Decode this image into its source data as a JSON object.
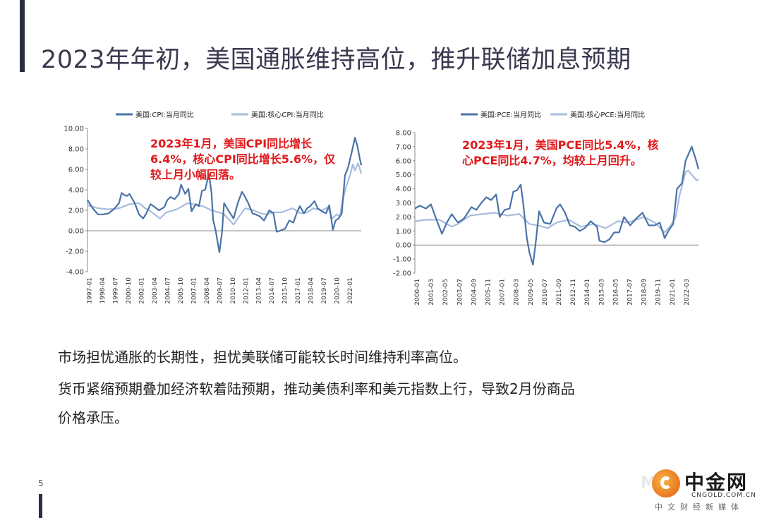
{
  "slide": {
    "title": "2023年年初，美国通胀维持高位，推升联储加息预期",
    "page_number": "5",
    "paragraphs": [
      "市场担忧通胀的长期性，担忧美联储可能较长时间维持利率高位。",
      "货币紧缩预期叠加经济软着陆预期，推动美债利率和美元指数上行，导致2月份商品",
      "价格承压。"
    ],
    "logo": {
      "mark": "M●",
      "name": "中金网",
      "domain": "CNGOLD.COM.CN",
      "tagline": "中文财经新媒体"
    }
  },
  "colors": {
    "primary": "#4a73a8",
    "secondary": "#a8bcdc",
    "annotation": "#e0191c",
    "accent_bar": "#2b2d42"
  },
  "chart_data": [
    {
      "type": "line",
      "annotation": "2023年1月，美国CPI同比增长6.4%，核心CPI同比增长5.6%，仅较上月小幅回落。",
      "x_tick_labels": [
        "1997-01",
        "1998-04",
        "1999-07",
        "2000-10",
        "2002-01",
        "2003-04",
        "2004-07",
        "2005-10",
        "2007-01",
        "2008-04",
        "2009-07",
        "2010-10",
        "2012-01",
        "2013-04",
        "2014-07",
        "2015-10",
        "2017-01",
        "2018-04",
        "2019-07",
        "2020-10",
        "2022-01"
      ],
      "y_tick_labels": [
        "10.00",
        "8.00",
        "6.00",
        "4.00",
        "2.00",
        "0.00",
        "-2.00",
        "-4.00"
      ],
      "ylim": [
        -4,
        10
      ],
      "x_range": [
        1997.0,
        2023.05
      ],
      "legend_position": "top",
      "grid": false,
      "series": [
        {
          "name": "美国:CPI:当月同比",
          "x": [
            1997.0,
            1997.5,
            1998.0,
            1998.5,
            1999.0,
            1999.5,
            2000.0,
            2000.25,
            2000.5,
            2000.75,
            2001.0,
            2001.5,
            2001.9,
            2002.3,
            2002.6,
            2003.0,
            2003.3,
            2003.8,
            2004.3,
            2004.6,
            2004.9,
            2005.3,
            2005.7,
            2005.9,
            2006.3,
            2006.6,
            2006.9,
            2007.3,
            2007.6,
            2007.9,
            2008.2,
            2008.55,
            2008.8,
            2008.95,
            2009.2,
            2009.55,
            2009.8,
            2010.0,
            2010.4,
            2010.9,
            2011.3,
            2011.7,
            2011.9,
            2012.3,
            2012.7,
            2013.0,
            2013.4,
            2013.8,
            2014.3,
            2014.7,
            2015.0,
            2015.3,
            2015.8,
            2016.2,
            2016.6,
            2016.9,
            2017.2,
            2017.6,
            2017.9,
            2018.2,
            2018.6,
            2018.9,
            2019.3,
            2019.7,
            2020.0,
            2020.35,
            2020.6,
            2020.9,
            2021.2,
            2021.5,
            2021.8,
            2022.1,
            2022.45,
            2022.7,
            2022.9,
            2023.05
          ],
          "values": [
            3.0,
            2.2,
            1.6,
            1.6,
            1.7,
            2.1,
            2.7,
            3.7,
            3.5,
            3.4,
            3.6,
            2.7,
            1.6,
            1.2,
            1.7,
            2.6,
            2.4,
            2.0,
            2.3,
            3.0,
            3.3,
            3.1,
            3.6,
            4.5,
            3.6,
            4.1,
            1.9,
            2.6,
            2.4,
            3.9,
            4.0,
            5.6,
            3.7,
            1.1,
            0.0,
            -2.1,
            -0.2,
            2.7,
            2.0,
            1.2,
            2.7,
            3.8,
            3.5,
            2.7,
            1.7,
            1.6,
            1.4,
            1.0,
            2.0,
            1.7,
            -0.1,
            0.0,
            0.2,
            1.0,
            0.8,
            1.7,
            2.4,
            1.7,
            2.2,
            2.4,
            2.9,
            2.2,
            1.9,
            1.7,
            2.5,
            0.1,
            1.0,
            1.2,
            1.7,
            5.4,
            6.2,
            7.5,
            9.1,
            8.2,
            7.1,
            6.4
          ]
        },
        {
          "name": "美国:核心CPI:当月同比",
          "x": [
            1997.0,
            1998.0,
            1999.0,
            2000.0,
            2001.0,
            2001.9,
            2002.5,
            2003.0,
            2003.9,
            2004.5,
            2005.5,
            2006.5,
            2007.0,
            2008.0,
            2008.8,
            2009.5,
            2010.0,
            2010.9,
            2011.5,
            2012.0,
            2012.8,
            2013.5,
            2014.0,
            2014.7,
            2015.5,
            2016.5,
            2017.3,
            2017.9,
            2018.5,
            2019.3,
            2019.9,
            2020.3,
            2020.7,
            2021.0,
            2021.3,
            2021.6,
            2022.0,
            2022.25,
            2022.45,
            2022.75,
            2023.05
          ],
          "values": [
            2.5,
            2.2,
            2.1,
            2.2,
            2.6,
            2.7,
            2.2,
            1.9,
            1.2,
            1.8,
            2.1,
            2.7,
            2.6,
            2.4,
            2.0,
            1.8,
            1.6,
            0.6,
            1.5,
            2.2,
            2.0,
            1.7,
            1.6,
            1.8,
            1.8,
            2.2,
            1.7,
            1.8,
            2.2,
            2.0,
            2.3,
            1.2,
            1.6,
            1.4,
            3.0,
            4.3,
            5.5,
            6.5,
            5.9,
            6.6,
            5.6
          ]
        }
      ]
    },
    {
      "type": "line",
      "annotation": "2023年1月，美国PCE同比5.4%，核心PCE同比4.7%，均较上月回升。",
      "x_tick_labels": [
        "2000-01",
        "2001-03",
        "2002-05",
        "2003-07",
        "2004-09",
        "2005-11",
        "2007-01",
        "2008-03",
        "2009-05",
        "2010-07",
        "2011-09",
        "2012-11",
        "2014-01",
        "2015-03",
        "2016-05",
        "2017-07",
        "2018-09",
        "2019-11",
        "2021-01",
        "2022-03"
      ],
      "y_tick_labels": [
        "8.00",
        "7.00",
        "6.00",
        "5.00",
        "4.00",
        "3.00",
        "2.00",
        "1.00",
        "0.00",
        "-1.00",
        "-2.00"
      ],
      "ylim": [
        -2,
        8
      ],
      "x_range": [
        2000.0,
        2023.05
      ],
      "legend_position": "top",
      "grid": false,
      "series": [
        {
          "name": "美国:PCE:当月同比",
          "x": [
            2000.0,
            2000.4,
            2000.9,
            2001.3,
            2001.8,
            2002.2,
            2002.6,
            2003.0,
            2003.5,
            2004.0,
            2004.6,
            2005.0,
            2005.4,
            2005.8,
            2006.2,
            2006.6,
            2006.9,
            2007.3,
            2007.7,
            2008.0,
            2008.3,
            2008.6,
            2008.8,
            2009.1,
            2009.3,
            2009.6,
            2009.8,
            2010.1,
            2010.5,
            2011.0,
            2011.5,
            2011.8,
            2012.2,
            2012.6,
            2013.0,
            2013.4,
            2013.8,
            2014.3,
            2014.8,
            2015.0,
            2015.4,
            2015.8,
            2016.2,
            2016.6,
            2017.0,
            2017.5,
            2018.0,
            2018.5,
            2019.0,
            2019.5,
            2019.9,
            2020.3,
            2020.6,
            2021.0,
            2021.3,
            2021.7,
            2022.0,
            2022.3,
            2022.5,
            2022.8,
            2023.05
          ],
          "values": [
            2.6,
            2.8,
            2.6,
            2.9,
            1.7,
            0.8,
            1.6,
            2.2,
            1.6,
            1.9,
            2.7,
            2.5,
            3.0,
            3.4,
            3.2,
            3.6,
            2.0,
            2.5,
            2.6,
            3.8,
            3.9,
            4.3,
            3.0,
            0.5,
            -0.5,
            -1.4,
            0.0,
            2.4,
            1.6,
            1.5,
            2.6,
            2.9,
            2.3,
            1.4,
            1.3,
            1.0,
            1.2,
            1.7,
            1.3,
            0.3,
            0.2,
            0.4,
            0.9,
            0.9,
            2.0,
            1.4,
            1.9,
            2.3,
            1.4,
            1.4,
            1.6,
            0.5,
            1.0,
            1.5,
            4.0,
            4.4,
            6.0,
            6.6,
            7.0,
            6.2,
            5.4
          ]
        },
        {
          "name": "美国:核心PCE:当月同比",
          "x": [
            2000.0,
            2001.0,
            2002.0,
            2003.0,
            2003.5,
            2004.5,
            2005.5,
            2006.5,
            2007.5,
            2008.5,
            2009.3,
            2010.0,
            2010.8,
            2011.5,
            2012.5,
            2013.5,
            2014.5,
            2015.5,
            2016.5,
            2017.3,
            2018.0,
            2018.6,
            2019.5,
            2020.3,
            2020.8,
            2021.2,
            2021.5,
            2022.0,
            2022.2,
            2022.6,
            2022.9,
            2023.05
          ],
          "values": [
            1.7,
            1.8,
            1.8,
            1.3,
            1.5,
            2.1,
            2.2,
            2.3,
            2.1,
            2.2,
            1.5,
            1.4,
            1.2,
            1.6,
            1.8,
            1.3,
            1.5,
            1.2,
            1.7,
            1.6,
            1.8,
            2.0,
            1.6,
            0.9,
            1.4,
            2.0,
            3.5,
            5.2,
            5.3,
            4.9,
            4.6,
            4.7
          ]
        }
      ]
    }
  ]
}
